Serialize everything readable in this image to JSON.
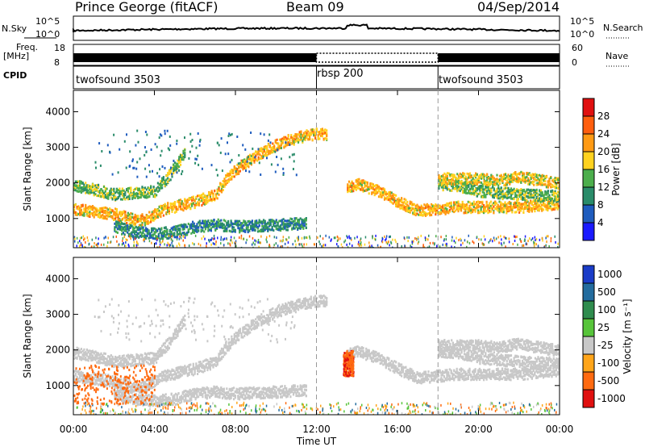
{
  "header": {
    "station": "Prince George (fitACF)",
    "beam": "Beam 09",
    "date": "04/Sep/2014"
  },
  "top_strips": {
    "nsky_label": "N.Sky",
    "nsky_ticks": [
      "10^5",
      "10^0"
    ],
    "nsearch_label": "N.Search",
    "nsearch_ticks": [
      "10^5",
      "10^0"
    ],
    "freq_label": "Freq.",
    "freq_unit": "[MHz]",
    "freq_ticks": [
      "18",
      "8"
    ],
    "nave_label": "Nave",
    "nave_ticks": [
      "60",
      "0"
    ],
    "cpid_label": "CPID",
    "cpid_segments": [
      {
        "name": "twofsound 3503",
        "start_hour": 0,
        "end_hour": 12
      },
      {
        "name": "rbsp 200",
        "start_hour": 12,
        "end_hour": 18
      },
      {
        "name": "twofsound 3503",
        "start_hour": 18,
        "end_hour": 24
      }
    ]
  },
  "chart_data": [
    {
      "type": "heatmap",
      "title": "Power",
      "ylabel": "Slant Range [km]",
      "ylim": [
        180,
        4600
      ],
      "xlim": [
        0,
        24
      ],
      "yticks": [
        "1000",
        "2000",
        "3000",
        "4000"
      ],
      "colorbar": {
        "label": "Power [dB]",
        "range": [
          0,
          32
        ],
        "ticks": [
          "4",
          "8",
          "12",
          "16",
          "20",
          "24",
          "28"
        ],
        "colors": [
          "#1a1aff",
          "#1f5cbe",
          "#2a8c6a",
          "#4cae4c",
          "#ffd21f",
          "#ff9a14",
          "#ff5e0e",
          "#e01010"
        ]
      },
      "echo_bands": [
        {
          "label": "lower band",
          "points": [
            [
              0,
              1300
            ],
            [
              2,
              1150
            ],
            [
              3,
              1000
            ],
            [
              3.5,
              1000
            ],
            [
              4.5,
              1300
            ],
            [
              6,
              1500
            ],
            [
              7,
              1700
            ],
            [
              7.5,
              2100
            ],
            [
              8,
              2400
            ],
            [
              9,
              2800
            ],
            [
              10,
              3100
            ],
            [
              11,
              3300
            ],
            [
              12,
              3400
            ],
            [
              12.5,
              3400
            ]
          ],
          "power_db": 20
        },
        {
          "label": "upper band",
          "points": [
            [
              0,
              1950
            ],
            [
              1,
              1850
            ],
            [
              2,
              1700
            ],
            [
              4,
              1800
            ],
            [
              4.8,
              2300
            ],
            [
              5.5,
              2900
            ]
          ],
          "power_db": 14
        },
        {
          "label": "morning near band",
          "points": [
            [
              2,
              800
            ],
            [
              3,
              650
            ],
            [
              4,
              600
            ],
            [
              5,
              650
            ],
            [
              6,
              800
            ],
            [
              7,
              850
            ],
            [
              8,
              800
            ],
            [
              10,
              850
            ],
            [
              11.5,
              900
            ]
          ],
          "power_db": 10
        },
        {
          "label": "evening band A",
          "points": [
            [
              13.5,
              1900
            ],
            [
              14,
              2000
            ],
            [
              15,
              1800
            ],
            [
              16,
              1500
            ],
            [
              17,
              1250
            ],
            [
              18,
              1300
            ],
            [
              19,
              1350
            ],
            [
              20,
              1350
            ],
            [
              22,
              1350
            ],
            [
              24,
              1450
            ]
          ],
          "power_db": 20
        },
        {
          "label": "evening band B",
          "points": [
            [
              18,
              2000
            ],
            [
              19,
              1950
            ],
            [
              20,
              1800
            ],
            [
              22,
              1700
            ],
            [
              24,
              1650
            ]
          ],
          "power_db": 14
        },
        {
          "label": "evening band C",
          "points": [
            [
              18,
              2150
            ],
            [
              20,
              2150
            ],
            [
              21,
              2100
            ],
            [
              22,
              2200
            ],
            [
              23,
              2100
            ],
            [
              24,
              2000
            ]
          ],
          "power_db": 18
        }
      ]
    },
    {
      "type": "heatmap",
      "title": "Velocity",
      "xlabel": "Time UT",
      "ylabel": "Slant Range [km]",
      "ylim": [
        180,
        4600
      ],
      "xlim": [
        0,
        24
      ],
      "xticks": [
        "00:00",
        "04:00",
        "08:00",
        "12:00",
        "16:00",
        "20:00",
        "00:00"
      ],
      "yticks": [
        "1000",
        "2000",
        "3000",
        "4000"
      ],
      "colorbar": {
        "label": "Velocity [m s⁻¹]",
        "ticks": [
          "1000",
          "500",
          "100",
          "25",
          "-25",
          "-100",
          "-500",
          "-1000"
        ],
        "colors": [
          "#1a3cc8",
          "#236c9e",
          "#2f8c4e",
          "#57c43a",
          "#c8c8c8",
          "#ffa51a",
          "#ff6a10",
          "#e01010"
        ]
      },
      "ground_scatter_color": "#c8c8c8",
      "notable_regions": [
        {
          "label": "early morning westward flow",
          "time_range": [
            0,
            4
          ],
          "range_km": [
            500,
            1600
          ],
          "velocity_mps": -300
        },
        {
          "label": "post-midnight burst",
          "time_range": [
            13.3,
            13.8
          ],
          "range_km": [
            1300,
            2000
          ],
          "velocity_mps": -400
        }
      ]
    }
  ]
}
